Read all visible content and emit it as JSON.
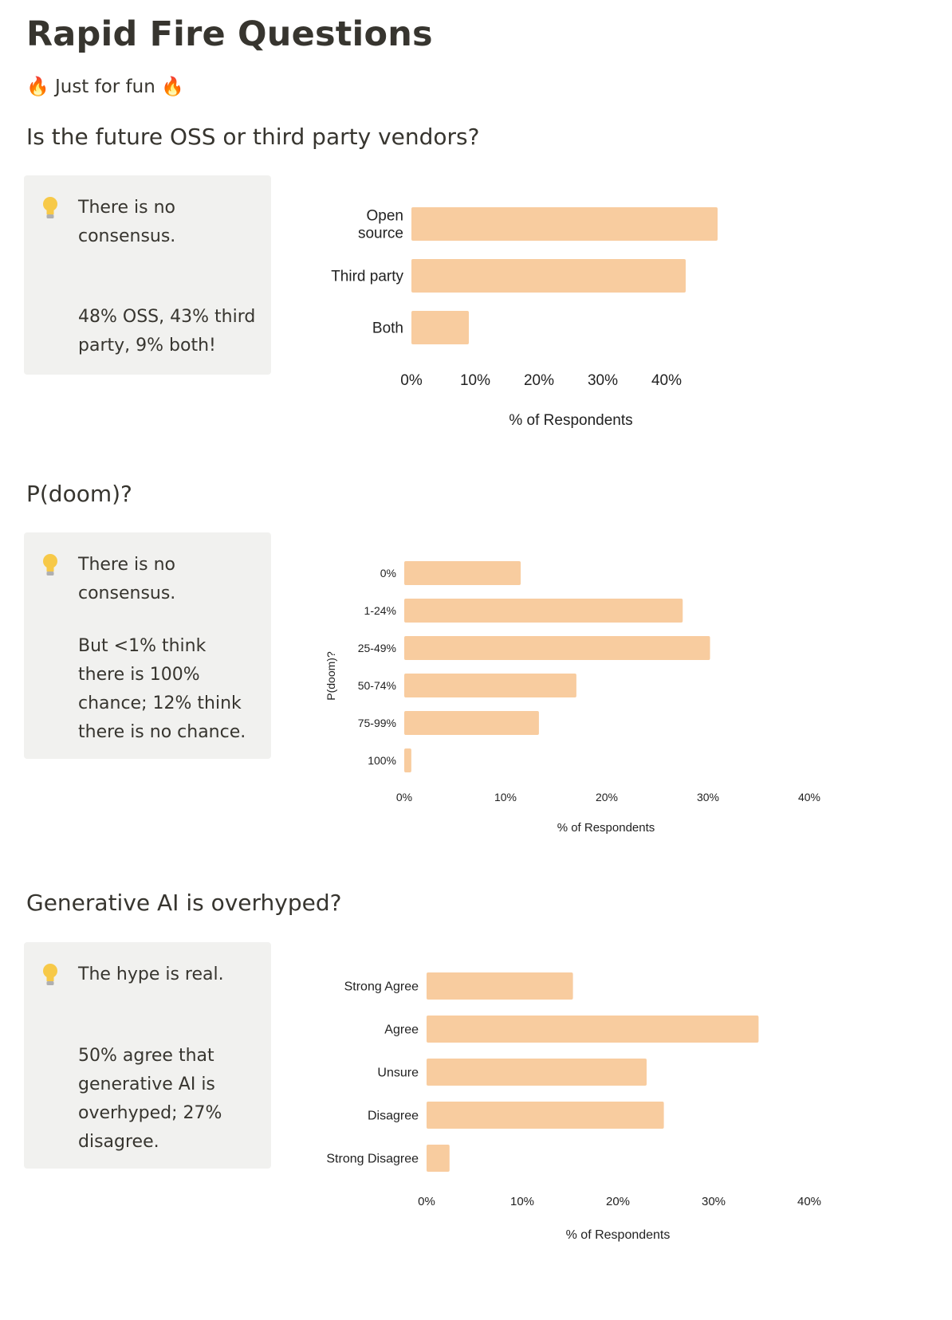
{
  "page": {
    "title": "Rapid Fire Questions",
    "subtitle": "Just for fun",
    "fire_icon": "🔥",
    "bar_color": "#f8cc9f",
    "callout_bg": "#f1f1ef"
  },
  "sections": [
    {
      "heading": "Is the future OSS or third party vendors?",
      "callout_lead": "There is no consensus.",
      "callout_detail": "48% OSS, 43% third party, 9% both!"
    },
    {
      "heading": "P(doom)?",
      "callout_lead": "There is no consensus.",
      "callout_detail": "But <1% think there is 100% chance; 12% think there is no chance."
    },
    {
      "heading": "Generative AI is overhyped?",
      "callout_lead": "The hype is real.",
      "callout_detail": "50% agree that generative AI is overhyped; 27% disagree."
    }
  ],
  "chart_data": [
    {
      "type": "bar",
      "orientation": "horizontal",
      "categories": [
        [
          "Open",
          "source"
        ],
        [
          "Third party"
        ],
        [
          "Both"
        ]
      ],
      "values": [
        48,
        43,
        9
      ],
      "xlabel": "% of Respondents",
      "ylabel": "",
      "xticks": [
        "0%",
        "10%",
        "20%",
        "30%",
        "40%"
      ],
      "xlim": [
        0,
        50
      ]
    },
    {
      "type": "bar",
      "orientation": "horizontal",
      "categories": [
        [
          "0%"
        ],
        [
          "1-24%"
        ],
        [
          "25-49%"
        ],
        [
          "50-74%"
        ],
        [
          "75-99%"
        ],
        [
          "100%"
        ]
      ],
      "values": [
        11.5,
        27.5,
        30.2,
        17.0,
        13.3,
        0.7
      ],
      "xlabel": "% of Respondents",
      "ylabel": "P(doom)?",
      "xticks": [
        "0%",
        "10%",
        "20%",
        "30%",
        "40%"
      ],
      "xlim": [
        0,
        40
      ]
    },
    {
      "type": "bar",
      "orientation": "horizontal",
      "categories": [
        [
          "Strong Agree"
        ],
        [
          "Agree"
        ],
        [
          "Unsure"
        ],
        [
          "Disagree"
        ],
        [
          "Strong Disagree"
        ]
      ],
      "values": [
        15.3,
        34.7,
        23.0,
        24.8,
        2.4
      ],
      "xlabel": "% of Respondents",
      "ylabel": "",
      "xticks": [
        "0%",
        "10%",
        "20%",
        "30%",
        "40%"
      ],
      "xlim": [
        0,
        40
      ]
    }
  ]
}
